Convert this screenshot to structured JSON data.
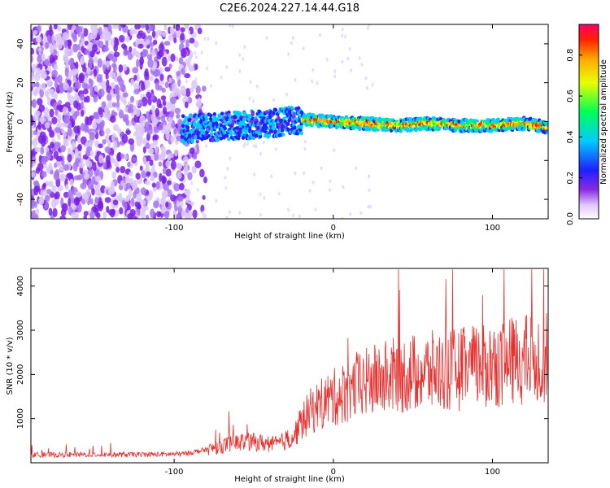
{
  "chart_data": [
    {
      "type": "heatmap",
      "title": "C2E6.2024.227.14.44.G18",
      "xlabel": "Height of straight line (km)",
      "ylabel": "Frequency (Hz)",
      "xlim": [
        -190,
        135
      ],
      "ylim": [
        -50,
        50
      ],
      "xticks": [
        -100,
        0,
        100
      ],
      "yticks": [
        -40,
        -20,
        0,
        20,
        40
      ],
      "colorbar": {
        "label": "Normalized spectral amplitude",
        "range": [
          0,
          0.95
        ],
        "ticks": [
          "0.0",
          "0.2",
          "0.4",
          "0.6",
          "0.8"
        ],
        "colormap": "rainbow (white-violet-blue-cyan-green-yellow-orange-red)"
      },
      "trace": {
        "description_regions": [
          {
            "x_from": -190,
            "x_to": -95,
            "content": "broadband noise"
          },
          {
            "x_from": -95,
            "x_to": -20,
            "content": "signal near 0 Hz, low amplitude, spread ±8 Hz"
          },
          {
            "x_from": -20,
            "x_to": 135,
            "content": "strong narrow signal near 0 Hz"
          }
        ],
        "center_frequency_points": [
          [
            -95,
            -4
          ],
          [
            -80,
            -3
          ],
          [
            -60,
            -2
          ],
          [
            -40,
            -1
          ],
          [
            -20,
            1
          ],
          [
            0,
            0
          ],
          [
            20,
            -1
          ],
          [
            40,
            -2
          ],
          [
            60,
            -1
          ],
          [
            80,
            -2
          ],
          [
            100,
            -2
          ],
          [
            120,
            -1
          ],
          [
            135,
            -3
          ]
        ]
      }
    },
    {
      "type": "line",
      "xlabel": "Height of straight line (km)",
      "ylabel": "SNR (10 * v/v)",
      "xlim": [
        -190,
        135
      ],
      "ylim": [
        0,
        4400
      ],
      "xticks": [
        -100,
        0,
        100
      ],
      "yticks": [
        1000,
        2000,
        3000,
        4000
      ],
      "color": "#e8302e",
      "series": [
        {
          "x": [
            -190,
            -170,
            -150,
            -130,
            -110,
            -95,
            -85,
            -75,
            -65,
            -55,
            -45,
            -35,
            -25,
            -20,
            -15,
            -5,
            5,
            15,
            25,
            35,
            45,
            55,
            65,
            75,
            85,
            95,
            105,
            115,
            125,
            135
          ],
          "values": [
            180,
            180,
            185,
            185,
            190,
            200,
            260,
            330,
            430,
            480,
            450,
            420,
            600,
            900,
            1150,
            1400,
            1550,
            1750,
            1850,
            1950,
            2000,
            2050,
            2080,
            2100,
            2150,
            2200,
            2250,
            2300,
            2350,
            2400
          ]
        }
      ]
    }
  ]
}
